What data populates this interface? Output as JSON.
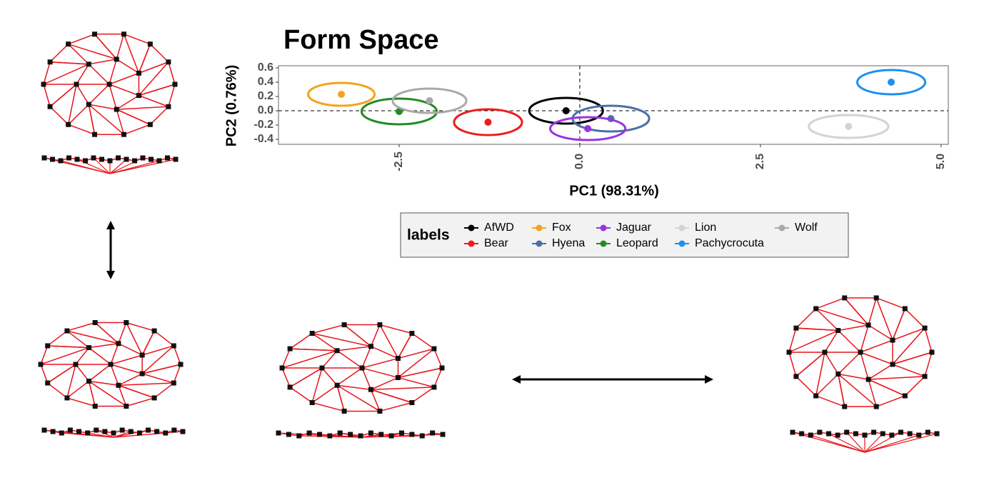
{
  "chart_data": {
    "type": "scatter",
    "title": "Form Space",
    "x_label": "PC1 (98.31%)",
    "y_label": "PC2 (0.76%)",
    "legend_title": "labels",
    "xlim": [
      -4.17,
      5.1
    ],
    "ylim": [
      -0.47,
      0.63
    ],
    "xticks": [
      -2.5,
      {
        "value": 0,
        "label": "0.0"
      },
      2.5,
      {
        "value": 5,
        "label": "5.0"
      }
    ],
    "yticks": [
      0.6,
      0.4,
      0.2,
      {
        "value": 0,
        "label": "0.0"
      },
      -0.2,
      -0.4
    ],
    "zero_lines": true,
    "series": [
      {
        "name": "AfWD",
        "color": "#000000",
        "x": -0.19,
        "y": 0.0,
        "rx": 0.51,
        "ry": 0.18
      },
      {
        "name": "Bear",
        "color": "#ee1c1c",
        "x": -1.27,
        "y": -0.16,
        "rx": 0.47,
        "ry": 0.18
      },
      {
        "name": "Fox",
        "color": "#f5a31a",
        "x": -3.3,
        "y": 0.23,
        "rx": 0.46,
        "ry": 0.16
      },
      {
        "name": "Hyena",
        "color": "#4a6fa5",
        "x": 0.43,
        "y": -0.11,
        "rx": 0.53,
        "ry": 0.18
      },
      {
        "name": "Jaguar",
        "color": "#9a32e0",
        "x": 0.11,
        "y": -0.25,
        "rx": 0.52,
        "ry": 0.16
      },
      {
        "name": "Leopard",
        "color": "#228b22",
        "x": -2.5,
        "y": -0.01,
        "rx": 0.52,
        "ry": 0.18
      },
      {
        "name": "Lion",
        "color": "#d3d3d3",
        "x": 3.72,
        "y": -0.22,
        "rx": 0.55,
        "ry": 0.16
      },
      {
        "name": "Pachycrocuta",
        "color": "#1e8ff0",
        "x": 4.31,
        "y": 0.4,
        "rx": 0.47,
        "ry": 0.17
      },
      {
        "name": "Wolf",
        "color": "#a9a9a9",
        "x": -2.08,
        "y": 0.14,
        "rx": 0.51,
        "ry": 0.17
      }
    ]
  }
}
